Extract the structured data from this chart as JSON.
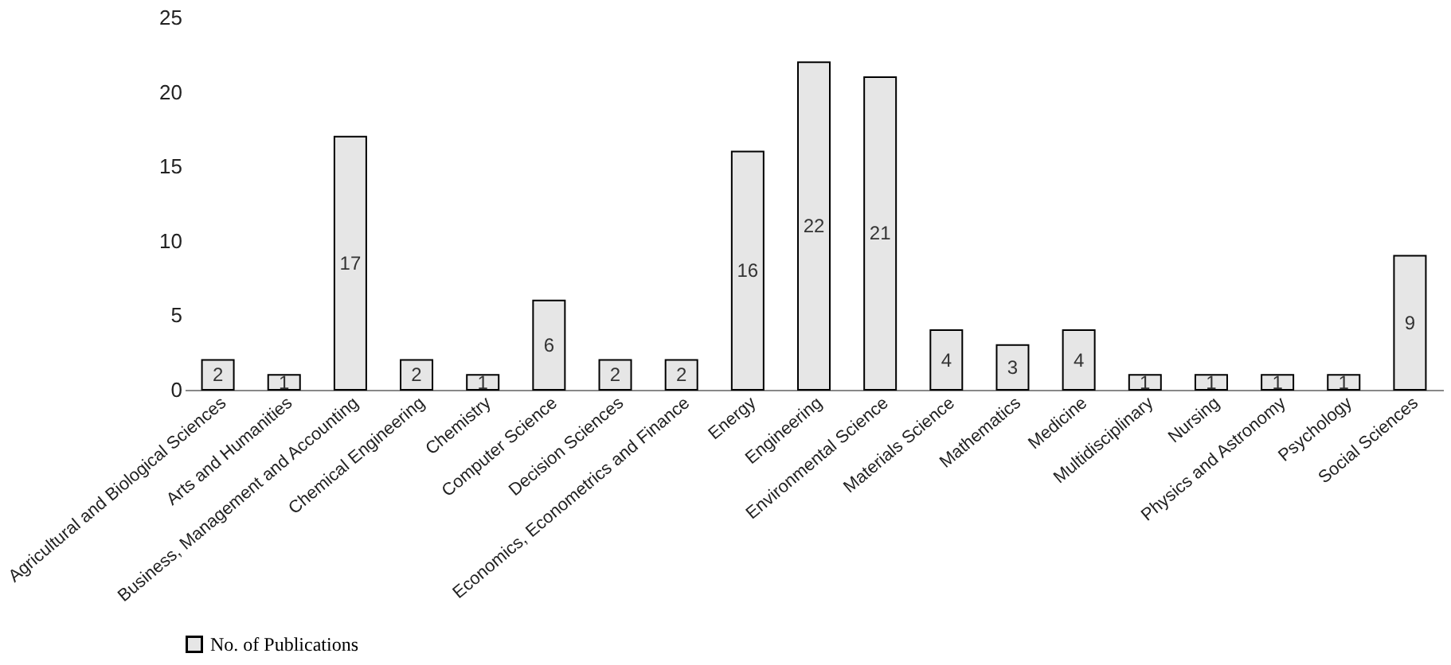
{
  "chart_data": {
    "type": "bar",
    "categories": [
      "Agricultural and Biological Sciences",
      "Arts and Humanities",
      "Business, Management and Accounting",
      "Chemical Engineering",
      "Chemistry",
      "Computer Science",
      "Decision Sciences",
      "Economics, Econometrics and Finance",
      "Energy",
      "Engineering",
      "Environmental Science",
      "Materials Science",
      "Mathematics",
      "Medicine",
      "Multidisciplinary",
      "Nursing",
      "Physics and Astronomy",
      "Psychology",
      "Social Sciences"
    ],
    "series": [
      {
        "name": "No. of Publications",
        "color": "#e6e6e6",
        "values": [
          2,
          1,
          17,
          2,
          1,
          6,
          2,
          2,
          16,
          22,
          21,
          4,
          3,
          4,
          1,
          1,
          1,
          1,
          9
        ]
      }
    ],
    "ylim": [
      0,
      25
    ],
    "yticks": [
      0,
      5,
      10,
      15,
      20,
      25
    ],
    "grid": false,
    "legend": "bottom",
    "data_labels": true
  }
}
